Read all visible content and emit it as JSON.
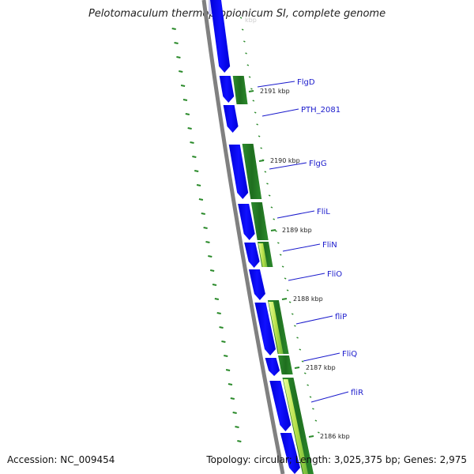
{
  "title": "Pelotomaculum thermopropionicum SI, complete genome",
  "footer": {
    "accession": "Accession: NC_009454",
    "topology": "Topology: circular; Length: 3,025,375 bp; Genes: 2,975"
  },
  "colors": {
    "backbone": "#808080",
    "cds_forward": "#0000ee",
    "gc_track": "#1f7f1f",
    "light_track": "#ccee66",
    "label_line": "#1a1acc",
    "tick_mark": "#2a8a2a"
  },
  "kbp_marks": [
    "2191 kbp",
    "2190 kbp",
    "2189 kbp",
    "2188 kbp",
    "2187 kbp",
    "2186 kbp"
  ],
  "gene_labels": [
    "FlgD",
    "PTH_2081",
    "FlgG",
    "FliL",
    "FliN",
    "FliO",
    "fliP",
    "FliQ",
    "fliR"
  ]
}
